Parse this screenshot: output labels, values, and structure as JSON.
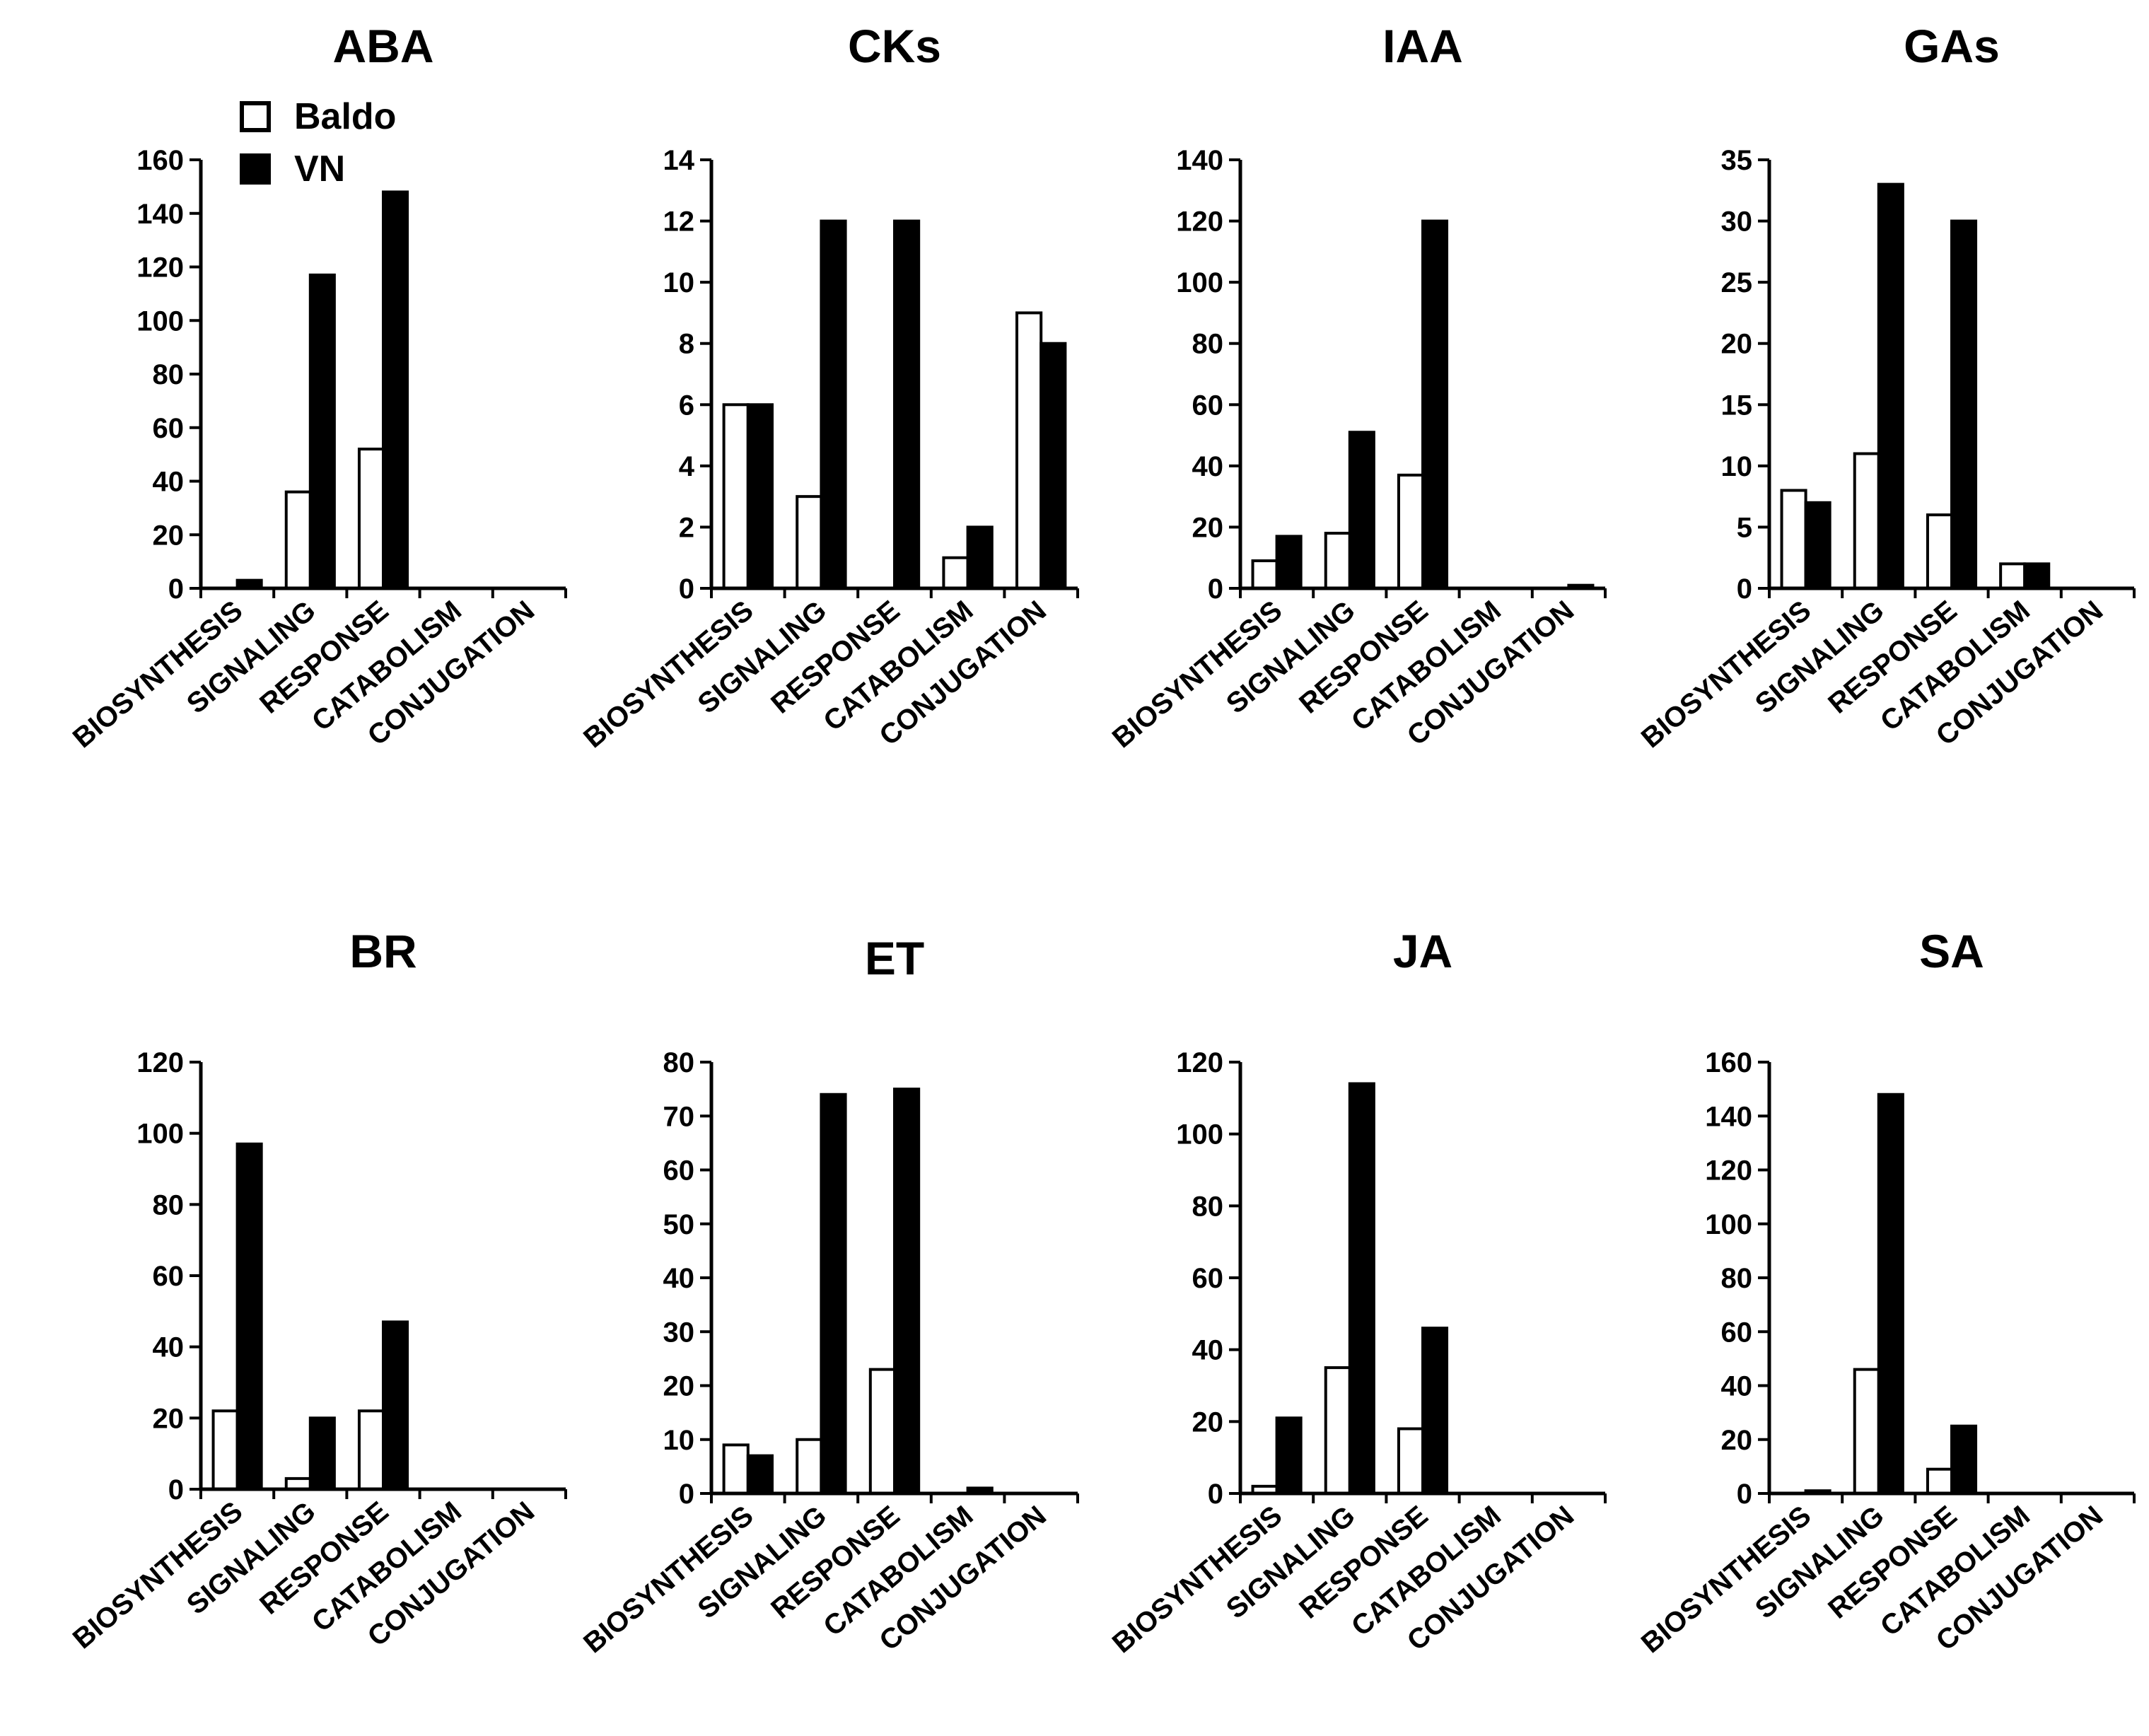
{
  "legend": [
    {
      "label": "Baldo",
      "fill": "#ffffff",
      "stroke": "#000000"
    },
    {
      "label": "VN",
      "fill": "#000000",
      "stroke": "#000000"
    }
  ],
  "chart_data": [
    {
      "type": "bar",
      "title": "ABA",
      "categories": [
        "BIOSYNTHESIS",
        "SIGNALING",
        "RESPONSE",
        "CATABOLISM",
        "CONJUGATION"
      ],
      "yticks": [
        0,
        20,
        40,
        60,
        80,
        100,
        120,
        140,
        160
      ],
      "ylim": [
        0,
        160
      ],
      "series": [
        {
          "name": "Baldo",
          "values": [
            0,
            36,
            52,
            0,
            0
          ]
        },
        {
          "name": "VN",
          "values": [
            3,
            117,
            148,
            0,
            0
          ]
        }
      ]
    },
    {
      "type": "bar",
      "title": "CKs",
      "categories": [
        "BIOSYNTHESIS",
        "SIGNALING",
        "RESPONSE",
        "CATABOLISM",
        "CONJUGATION"
      ],
      "yticks": [
        0,
        2,
        4,
        6,
        8,
        10,
        12,
        14
      ],
      "ylim": [
        0,
        14
      ],
      "series": [
        {
          "name": "Baldo",
          "values": [
            6,
            3,
            0,
            1,
            9
          ]
        },
        {
          "name": "VN",
          "values": [
            6,
            12,
            12,
            2,
            8
          ]
        }
      ]
    },
    {
      "type": "bar",
      "title": "IAA",
      "categories": [
        "BIOSYNTHESIS",
        "SIGNALING",
        "RESPONSE",
        "CATABOLISM",
        "CONJUGATION"
      ],
      "yticks": [
        0,
        20,
        40,
        60,
        80,
        100,
        120,
        140
      ],
      "ylim": [
        0,
        140
      ],
      "series": [
        {
          "name": "Baldo",
          "values": [
            9,
            18,
            37,
            0,
            0
          ]
        },
        {
          "name": "VN",
          "values": [
            17,
            51,
            120,
            0,
            1
          ]
        }
      ]
    },
    {
      "type": "bar",
      "title": "GAs",
      "categories": [
        "BIOSYNTHESIS",
        "SIGNALING",
        "RESPONSE",
        "CATABOLISM",
        "CONJUGATION"
      ],
      "yticks": [
        0,
        5,
        10,
        15,
        20,
        25,
        30,
        35
      ],
      "ylim": [
        0,
        35
      ],
      "series": [
        {
          "name": "Baldo",
          "values": [
            8,
            11,
            6,
            2,
            0
          ]
        },
        {
          "name": "VN",
          "values": [
            7,
            33,
            30,
            2,
            0
          ]
        }
      ]
    },
    {
      "type": "bar",
      "title": "BR",
      "categories": [
        "BIOSYNTHESIS",
        "SIGNALING",
        "RESPONSE",
        "CATABOLISM",
        "CONJUGATION"
      ],
      "yticks": [
        0,
        20,
        40,
        60,
        80,
        100,
        120
      ],
      "ylim": [
        0,
        120
      ],
      "series": [
        {
          "name": "Baldo",
          "values": [
            22,
            3,
            22,
            0,
            0
          ]
        },
        {
          "name": "VN",
          "values": [
            97,
            20,
            47,
            0,
            0
          ]
        }
      ]
    },
    {
      "type": "bar",
      "title": "ET",
      "categories": [
        "BIOSYNTHESIS",
        "SIGNALING",
        "RESPONSE",
        "CATABOLISM",
        "CONJUGATION"
      ],
      "yticks": [
        0,
        10,
        20,
        30,
        40,
        50,
        60,
        70,
        80
      ],
      "ylim": [
        0,
        80
      ],
      "series": [
        {
          "name": "Baldo",
          "values": [
            9,
            10,
            23,
            0,
            0
          ]
        },
        {
          "name": "VN",
          "values": [
            7,
            74,
            75,
            1,
            0
          ]
        }
      ]
    },
    {
      "type": "bar",
      "title": "JA",
      "categories": [
        "BIOSYNTHESIS",
        "SIGNALING",
        "RESPONSE",
        "CATABOLISM",
        "CONJUGATION"
      ],
      "yticks": [
        0,
        20,
        40,
        60,
        80,
        100,
        120
      ],
      "ylim": [
        0,
        120
      ],
      "series": [
        {
          "name": "Baldo",
          "values": [
            2,
            35,
            18,
            0,
            0
          ]
        },
        {
          "name": "VN",
          "values": [
            21,
            114,
            46,
            0,
            0
          ]
        }
      ]
    },
    {
      "type": "bar",
      "title": "SA",
      "categories": [
        "BIOSYNTHESIS",
        "SIGNALING",
        "RESPONSE",
        "CATABOLISM",
        "CONJUGATION"
      ],
      "yticks": [
        0,
        20,
        40,
        60,
        80,
        100,
        120,
        140,
        160
      ],
      "ylim": [
        0,
        160
      ],
      "series": [
        {
          "name": "Baldo",
          "values": [
            0,
            46,
            9,
            0,
            0
          ]
        },
        {
          "name": "VN",
          "values": [
            1,
            148,
            25,
            0,
            0
          ]
        }
      ]
    }
  ]
}
